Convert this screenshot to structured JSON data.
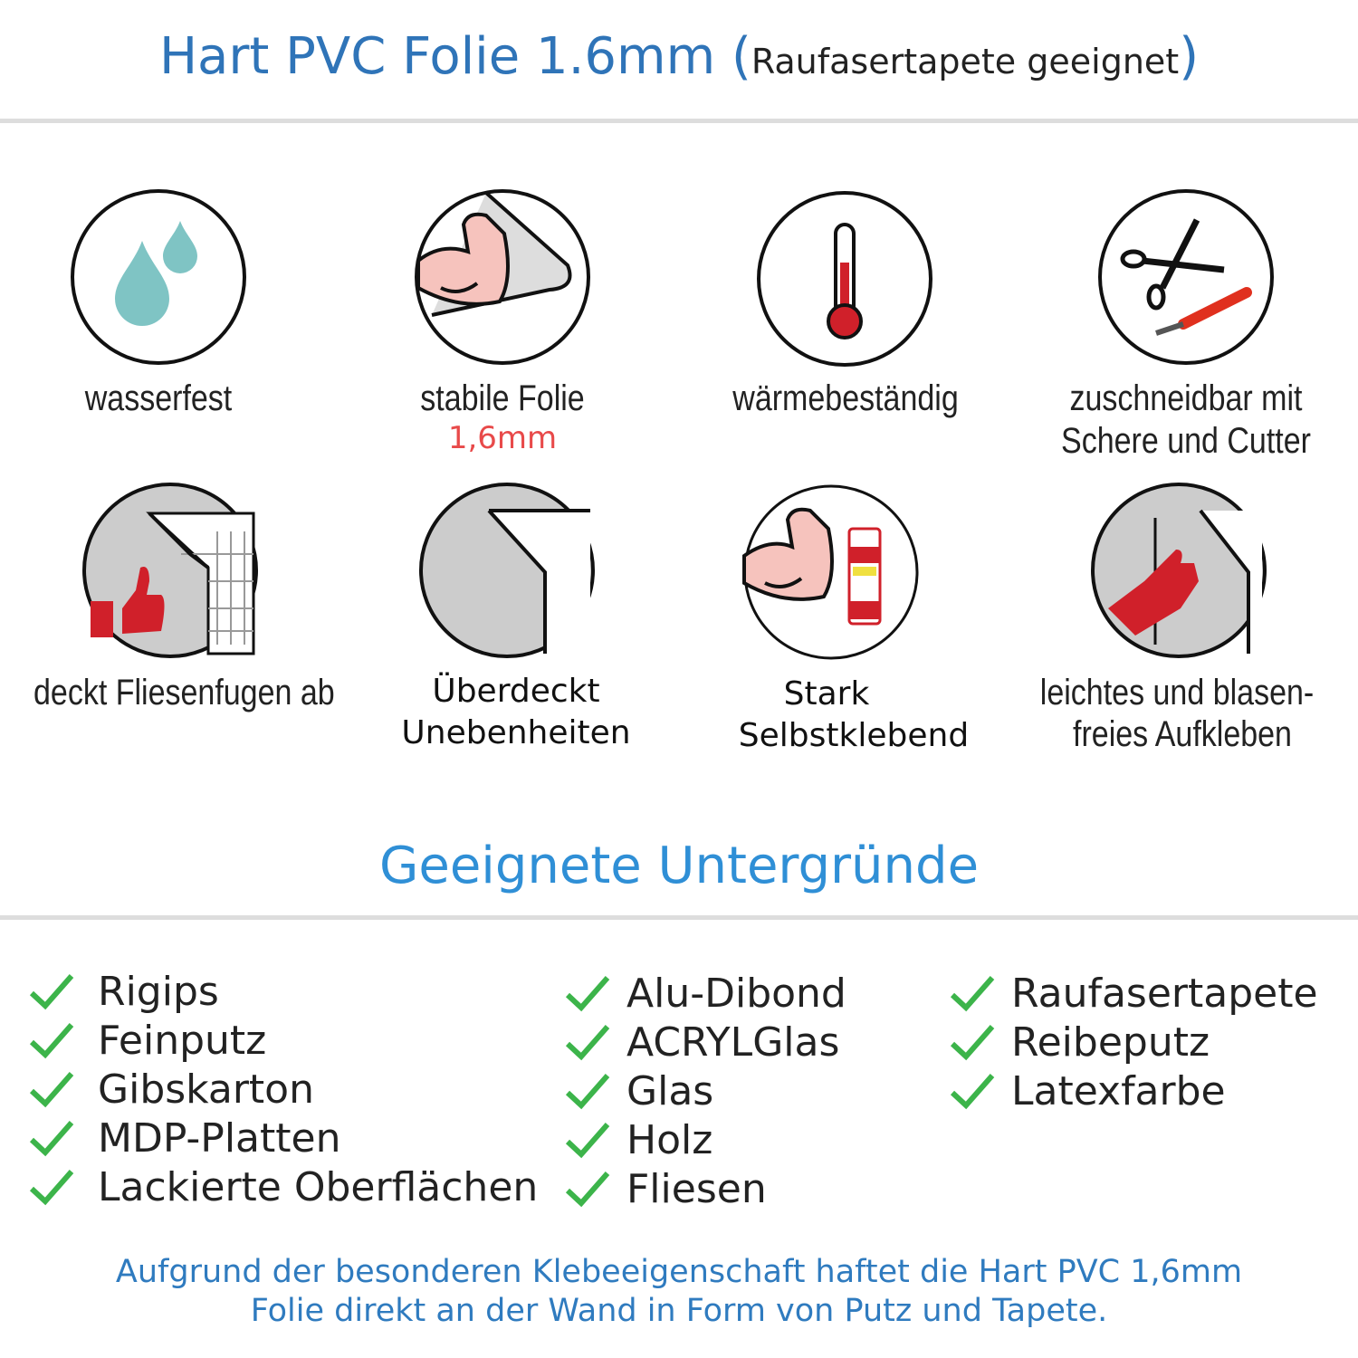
{
  "header": {
    "title": "Hart PVC Folie 1.6mm",
    "paren_open": "(",
    "subtitle": "Raufasertapete geeignet",
    "paren_close": ")"
  },
  "features": [
    {
      "icon": "water-drops-icon",
      "label": "wasserfest"
    },
    {
      "icon": "strong-arm-roll-icon",
      "label": "stabile Folie",
      "sublabel": "1,6mm"
    },
    {
      "icon": "thermometer-icon",
      "label": "wärmebeständig"
    },
    {
      "icon": "scissors-cutter-icon",
      "label_line1": "zuschneidbar mit",
      "label_line2": "Schere und Cutter"
    },
    {
      "icon": "thumbs-up-tiles-icon",
      "label": "deckt Fliesenfugen ab"
    },
    {
      "icon": "foil-sheet-icon",
      "label_line1": "Überdeckt",
      "label_line2": "Unebenheiten"
    },
    {
      "icon": "strong-arm-glue-icon",
      "label_line1": "Stark",
      "label_line2": "Selbstklebend"
    },
    {
      "icon": "hand-smoothing-icon",
      "label_line1": "leichtes und blasen-",
      "label_line2": "freies Aufkleben"
    }
  ],
  "section_title": "Geeignete Untergründe",
  "surfaces": {
    "col1": [
      "Rigips",
      "Feinputz",
      "Gibskarton",
      "MDP-Platten",
      "Lackierte Oberflächen"
    ],
    "col2": [
      "Alu-Dibond",
      "ACRYLGlas",
      "Glas",
      "Holz",
      "Fliesen"
    ],
    "col3": [
      "Raufasertapete",
      "Reibeputz",
      "Latexfarbe"
    ]
  },
  "footer": {
    "line1": "Aufgrund der besonderen Klebeeigenschaft haftet die Hart PVC 1,6mm",
    "line2": "Folie direkt an der Wand in Form von Putz und Tapete."
  },
  "colors": {
    "title": "#2f74b8",
    "section": "#2f8fd6",
    "check": "#3cb44a",
    "accent_red": "#e84a4a",
    "drop": "#7fc4c4",
    "icon_red": "#d0202a"
  }
}
